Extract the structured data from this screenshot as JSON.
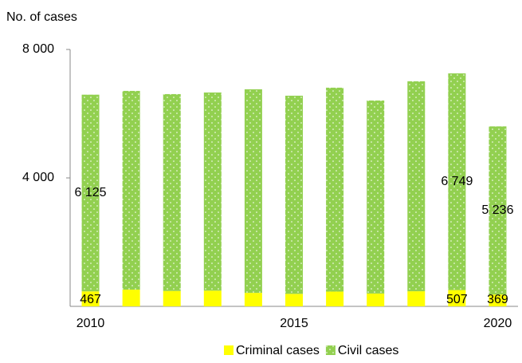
{
  "chart_data": {
    "type": "stacked_bar",
    "y_axis_title": "No. of cases",
    "categories": [
      "2010",
      null,
      null,
      null,
      null,
      "2015",
      null,
      null,
      null,
      null,
      "2020"
    ],
    "series": [
      {
        "name": "Criminal cases",
        "color": "#ffff00",
        "values": [
          467,
          520,
          480,
          490,
          420,
          390,
          460,
          400,
          470,
          507,
          369
        ],
        "value_labels": [
          "467",
          null,
          null,
          null,
          null,
          null,
          null,
          null,
          null,
          "507",
          "369"
        ]
      },
      {
        "name": "Civil cases",
        "color": "#92d050",
        "values": [
          6125,
          6190,
          6130,
          6170,
          6340,
          6170,
          6350,
          6010,
          6540,
          6749,
          5236
        ],
        "value_labels": [
          "6 125",
          null,
          null,
          null,
          null,
          null,
          null,
          null,
          null,
          "6 749",
          "5 236"
        ]
      }
    ],
    "ylim": [
      0,
      8000
    ],
    "yticks": [
      {
        "value": 4000,
        "label": "4 000"
      },
      {
        "value": 8000,
        "label": "8 000"
      }
    ],
    "legend": "bottom"
  }
}
